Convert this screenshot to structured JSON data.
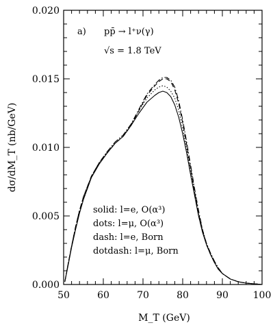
{
  "chart_data": {
    "type": "line",
    "panel_label": "a)",
    "process": "pp̄ → l⁺ν(γ)",
    "energy": "√s = 1.8 TeV",
    "xlabel": "M_T (GeV)",
    "ylabel": "dσ/dM_T (nb/GeV)",
    "xlim": [
      50,
      100
    ],
    "ylim": [
      0,
      0.02
    ],
    "x_ticks": [
      50,
      60,
      70,
      80,
      90,
      100
    ],
    "x_tick_labels": [
      "50",
      "60",
      "70",
      "80",
      "90",
      "100"
    ],
    "y_ticks": [
      0,
      0.005,
      0.01,
      0.015,
      0.02
    ],
    "y_tick_labels": [
      "0.000",
      "0.005",
      "0.010",
      "0.015",
      "0.020"
    ],
    "legend": {
      "placement": "lower-left",
      "entries": [
        {
          "style": "solid",
          "text": "solid: l=e, O(α³)"
        },
        {
          "style": "dots",
          "text": "dots: l=μ, O(α³)"
        },
        {
          "style": "dash",
          "text": "dash: l=e, Born"
        },
        {
          "style": "dotdash",
          "text": "dotdash: l=μ, Born"
        }
      ]
    },
    "series": [
      {
        "name": "solid",
        "style": "solid",
        "x": [
          50.3,
          51,
          52,
          53,
          54,
          55,
          57,
          59,
          61,
          63,
          65,
          67,
          69,
          71,
          73,
          74,
          75,
          76,
          77,
          78,
          79,
          80,
          81,
          82,
          83,
          84,
          85,
          86,
          87,
          88,
          89,
          90,
          92,
          94,
          96,
          98,
          100
        ],
        "y": [
          0.0002,
          0.0012,
          0.0027,
          0.004,
          0.0052,
          0.0062,
          0.0078,
          0.0088,
          0.0096,
          0.0103,
          0.0108,
          0.0116,
          0.0125,
          0.0133,
          0.0138,
          0.014,
          0.0141,
          0.014,
          0.0137,
          0.0131,
          0.0122,
          0.011,
          0.0096,
          0.008,
          0.0065,
          0.005,
          0.0038,
          0.0029,
          0.0022,
          0.0016,
          0.0011,
          0.0008,
          0.0004,
          0.0002,
          0.0001,
          5e-05,
          0.0
        ]
      },
      {
        "name": "dots",
        "style": "dots",
        "x": [
          50.3,
          51,
          52,
          53,
          54,
          55,
          57,
          59,
          61,
          63,
          65,
          67,
          69,
          71,
          73,
          74,
          75,
          76,
          77,
          78,
          79,
          80,
          81,
          82,
          83,
          84,
          85,
          86,
          87,
          88,
          89,
          90,
          92,
          94,
          96,
          98,
          100
        ],
        "y": [
          0.0002,
          0.0013,
          0.0028,
          0.0041,
          0.0053,
          0.0063,
          0.0079,
          0.0089,
          0.0097,
          0.0104,
          0.0109,
          0.0117,
          0.0127,
          0.0136,
          0.0142,
          0.0144,
          0.0145,
          0.0144,
          0.0141,
          0.0136,
          0.0127,
          0.0114,
          0.0099,
          0.0083,
          0.0067,
          0.0052,
          0.004,
          0.003,
          0.0023,
          0.0017,
          0.0012,
          0.0008,
          0.0004,
          0.0002,
          0.0001,
          5e-05,
          0.0
        ]
      },
      {
        "name": "dash",
        "style": "dash",
        "x": [
          50.3,
          51,
          52,
          53,
          54,
          55,
          57,
          59,
          61,
          63,
          65,
          67,
          69,
          71,
          73,
          74,
          75,
          76,
          77,
          78,
          79,
          80,
          81,
          82,
          83,
          84,
          85,
          86,
          87,
          88,
          89,
          90,
          92,
          94,
          96,
          98,
          100
        ],
        "y": [
          0.0002,
          0.0013,
          0.0028,
          0.0042,
          0.0054,
          0.0064,
          0.0079,
          0.0089,
          0.0096,
          0.0103,
          0.0108,
          0.0116,
          0.0127,
          0.0138,
          0.0145,
          0.0148,
          0.015,
          0.015,
          0.0148,
          0.0142,
          0.0132,
          0.0118,
          0.0102,
          0.0085,
          0.0068,
          0.0052,
          0.0039,
          0.0029,
          0.0022,
          0.0016,
          0.0011,
          0.0008,
          0.0004,
          0.0002,
          0.0001,
          5e-05,
          0.0
        ]
      },
      {
        "name": "dotdash",
        "style": "dotdash",
        "x": [
          50.3,
          51,
          52,
          53,
          54,
          55,
          57,
          59,
          61,
          63,
          65,
          67,
          69,
          71,
          73,
          74,
          75,
          76,
          77,
          78,
          79,
          80,
          81,
          82,
          83,
          84,
          85,
          86,
          87,
          88,
          89,
          90,
          92,
          94,
          96,
          98,
          100
        ],
        "y": [
          0.0002,
          0.0013,
          0.0028,
          0.0042,
          0.0054,
          0.0064,
          0.0079,
          0.0089,
          0.0097,
          0.0104,
          0.0109,
          0.0117,
          0.0128,
          0.0139,
          0.0146,
          0.0149,
          0.0151,
          0.0151,
          0.0149,
          0.0144,
          0.0134,
          0.012,
          0.0104,
          0.0087,
          0.007,
          0.0054,
          0.004,
          0.003,
          0.0023,
          0.0017,
          0.0012,
          0.0008,
          0.0004,
          0.0002,
          0.0001,
          5e-05,
          0.0
        ]
      }
    ]
  }
}
